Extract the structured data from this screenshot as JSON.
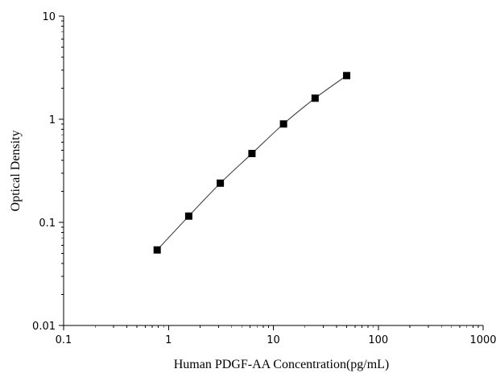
{
  "chart_data": {
    "type": "scatter",
    "title": "",
    "xlabel": "Human PDGF-AA Concentration(pg/mL)",
    "ylabel": "Optical Density",
    "xscale": "log",
    "yscale": "log",
    "xlim": [
      0.1,
      1000
    ],
    "ylim": [
      0.01,
      10
    ],
    "x_ticks": [
      "0.1",
      "1",
      "10",
      "100",
      "1000"
    ],
    "y_ticks": [
      "0.01",
      "0.1",
      "1",
      "10"
    ],
    "grid": false,
    "legend": "none",
    "fit_line": true,
    "series": [
      {
        "x": [
          0.78,
          1.56,
          3.12,
          6.25,
          12.5,
          25,
          50
        ],
        "y": [
          0.054,
          0.115,
          0.24,
          0.465,
          0.9,
          1.6,
          2.65
        ]
      }
    ],
    "colors": {
      "marker": "#000000",
      "line": "#444444",
      "axis": "#000000"
    }
  }
}
